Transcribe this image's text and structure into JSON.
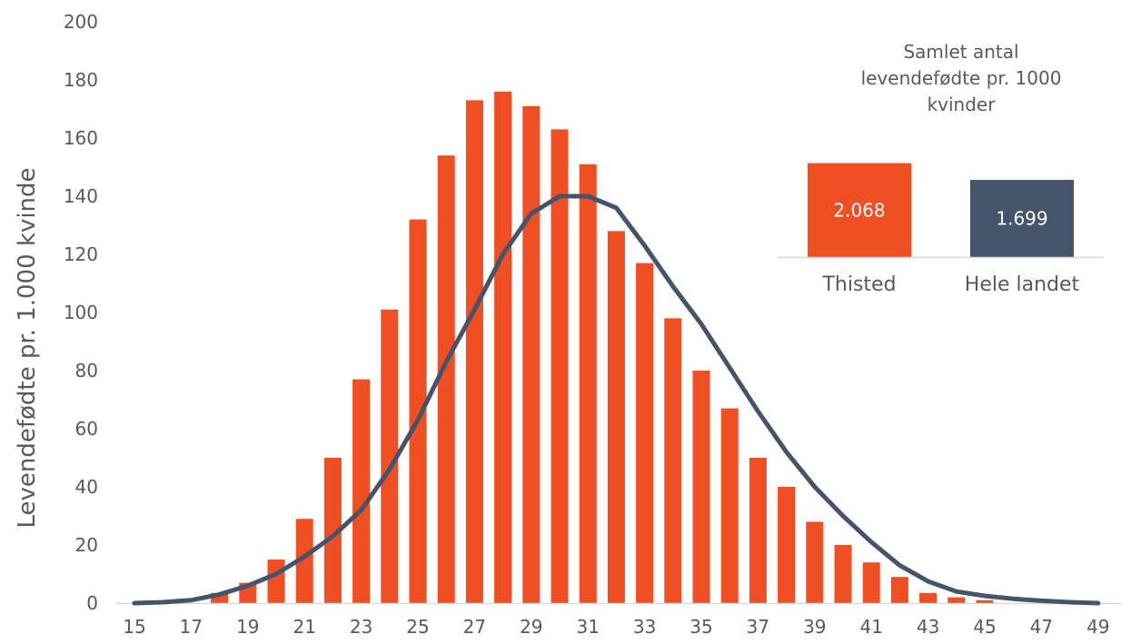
{
  "chart_data": [
    {
      "type": "bar",
      "ylabel": "Levendefødte pr. 1.000 kvinde",
      "xlabel": "",
      "ylim": [
        0,
        200
      ],
      "yticks": [
        0,
        20,
        40,
        60,
        80,
        100,
        120,
        140,
        160,
        180,
        200
      ],
      "xlim": [
        15,
        49
      ],
      "xticks": [
        15,
        17,
        19,
        21,
        23,
        25,
        27,
        29,
        31,
        33,
        35,
        37,
        39,
        41,
        43,
        45,
        47,
        49
      ],
      "grid": false,
      "series": [
        {
          "type": "bar",
          "color": "#f04e23",
          "x": [
            15,
            16,
            17,
            18,
            19,
            20,
            21,
            22,
            23,
            24,
            25,
            26,
            27,
            28,
            29,
            30,
            31,
            32,
            33,
            34,
            35,
            36,
            37,
            38,
            39,
            40,
            41,
            42,
            43,
            44,
            45,
            46,
            47,
            48,
            49
          ],
          "values": [
            0,
            0,
            0,
            3.5,
            7,
            15,
            29,
            50,
            77,
            101,
            132,
            154,
            173,
            176,
            171,
            163,
            151,
            128,
            117,
            98,
            80,
            67,
            50,
            40,
            28,
            20,
            14,
            9,
            3.5,
            2,
            1,
            0,
            0,
            0,
            0
          ]
        },
        {
          "type": "line",
          "color": "#44546a",
          "x": [
            15,
            16,
            17,
            18,
            19,
            20,
            21,
            22,
            23,
            24,
            25,
            26,
            27,
            28,
            29,
            30,
            31,
            32,
            33,
            34,
            35,
            36,
            37,
            38,
            39,
            40,
            41,
            42,
            43,
            44,
            45,
            46,
            47,
            48,
            49
          ],
          "values": [
            0,
            0.3,
            1,
            3,
            6,
            10,
            16,
            23,
            32,
            46,
            63,
            83,
            101,
            120,
            134,
            140,
            140,
            136,
            123,
            109,
            96,
            81,
            66,
            52,
            40,
            30,
            21,
            13,
            7.5,
            4,
            2.5,
            1.5,
            0.8,
            0.3,
            0
          ]
        }
      ]
    },
    {
      "type": "bar",
      "title": "Samlet antal levendefødte pr. 1000 kvinder",
      "title_lines": [
        "Samlet antal",
        "levendefødte pr. 1000",
        "kvinder"
      ],
      "categories": [
        "Thisted",
        "Hele landet"
      ],
      "values": [
        2068,
        1699
      ],
      "labels": [
        "2.068",
        "1.699"
      ],
      "colors": [
        "#f04e23",
        "#44546a"
      ],
      "ylim": [
        0,
        2320
      ]
    }
  ]
}
